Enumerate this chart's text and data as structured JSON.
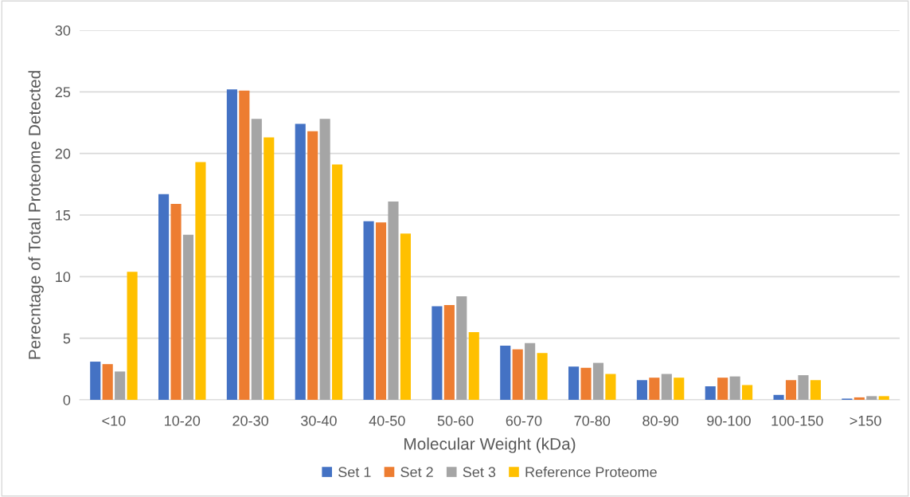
{
  "chart_data": {
    "type": "bar",
    "xlabel": "Molecular Weight (kDa)",
    "ylabel": "Perecntage of Total Proteome Detected",
    "categories": [
      "<10",
      "10-20",
      "20-30",
      "30-40",
      "40-50",
      "50-60",
      "60-70",
      "70-80",
      "80-90",
      "90-100",
      "100-150",
      ">150"
    ],
    "series": [
      {
        "name": "Set 1",
        "color": "#4472c4",
        "values": [
          3.1,
          16.7,
          25.2,
          22.4,
          14.5,
          7.6,
          4.4,
          2.7,
          1.6,
          1.1,
          0.4,
          0.1
        ]
      },
      {
        "name": "Set 2",
        "color": "#ed7d31",
        "values": [
          2.9,
          15.9,
          25.1,
          21.8,
          14.4,
          7.7,
          4.1,
          2.6,
          1.8,
          1.8,
          1.6,
          0.2
        ]
      },
      {
        "name": "Set 3",
        "color": "#a5a5a5",
        "values": [
          2.3,
          13.4,
          22.8,
          22.8,
          16.1,
          8.4,
          4.6,
          3.0,
          2.1,
          1.9,
          2.0,
          0.3
        ]
      },
      {
        "name": "Reference Proteome",
        "color": "#ffc000",
        "values": [
          10.4,
          19.3,
          21.3,
          19.1,
          13.5,
          5.5,
          3.8,
          2.1,
          1.8,
          1.2,
          1.6,
          0.3
        ]
      }
    ],
    "ylim": [
      0,
      30
    ],
    "yticks": [
      0,
      5,
      10,
      15,
      20,
      25,
      30
    ],
    "grid": "y",
    "legend": "bottom"
  }
}
